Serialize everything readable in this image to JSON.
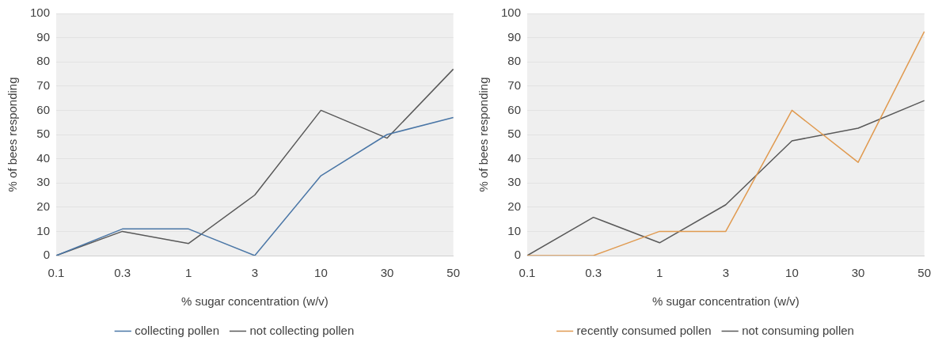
{
  "chart_data": [
    {
      "type": "line",
      "xlabel": "% sugar concentration (w/v)",
      "ylabel": "% of bees responding",
      "categories": [
        "0.1",
        "0.3",
        "1",
        "3",
        "10",
        "30",
        "50"
      ],
      "series": [
        {
          "name": "collecting pollen",
          "color": "#4a76a6",
          "values": [
            0,
            11,
            11,
            0,
            33,
            50,
            57
          ]
        },
        {
          "name": "not collecting pollen",
          "color": "#595959",
          "values": [
            0,
            10,
            5,
            25,
            60,
            48.5,
            77
          ]
        }
      ],
      "ylim": [
        0,
        100
      ],
      "yticks": [
        0,
        10,
        20,
        30,
        40,
        50,
        60,
        70,
        80,
        90,
        100
      ],
      "grid": "y",
      "legend": "bottom",
      "marker": "none",
      "line_style": "solid"
    },
    {
      "type": "line",
      "xlabel": "% sugar concentration (w/v)",
      "ylabel": "% of bees responding",
      "categories": [
        "0.1",
        "0.3",
        "1",
        "3",
        "10",
        "30",
        "50"
      ],
      "series": [
        {
          "name": "recently consumed pollen",
          "color": "#e09a50",
          "values": [
            0,
            0,
            10,
            10,
            60,
            38.5,
            92.5
          ]
        },
        {
          "name": "not consuming pollen",
          "color": "#595959",
          "values": [
            0,
            15.8,
            5.3,
            21,
            47.4,
            52.6,
            64
          ]
        }
      ],
      "ylim": [
        0,
        100
      ],
      "yticks": [
        0,
        10,
        20,
        30,
        40,
        50,
        60,
        70,
        80,
        90,
        100
      ],
      "grid": "y",
      "legend": "bottom",
      "marker": "none",
      "line_style": "solid"
    }
  ]
}
